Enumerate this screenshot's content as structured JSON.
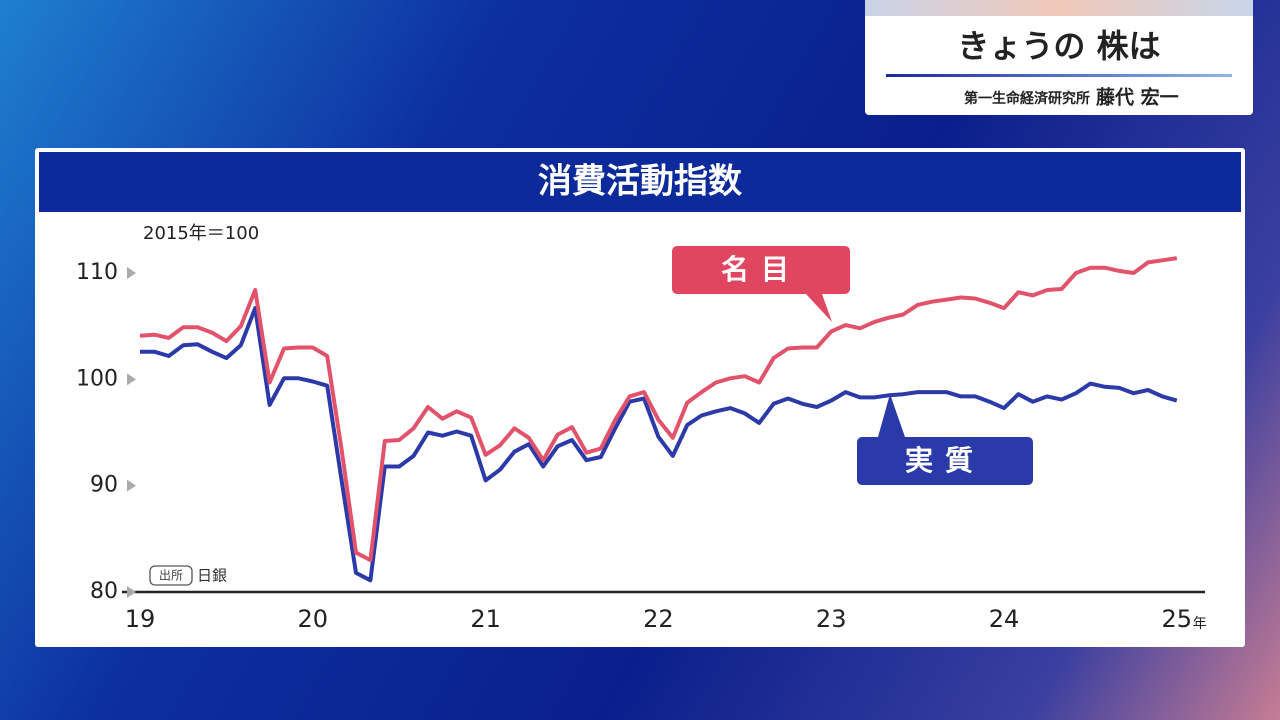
{
  "header": {
    "title": "きょうの 株は",
    "affiliation": "第一生命経済研究所",
    "name": "藤代 宏一"
  },
  "chart_data": {
    "type": "line",
    "title": "消費活動指数",
    "y_note": "2015年＝100",
    "source_tag": "出所",
    "source": "日銀",
    "x_unit": "年",
    "categories": [
      "19",
      null,
      null,
      null,
      null,
      null,
      null,
      null,
      null,
      null,
      null,
      null,
      "20",
      null,
      null,
      null,
      null,
      null,
      null,
      null,
      null,
      null,
      null,
      null,
      "21",
      null,
      null,
      null,
      null,
      null,
      null,
      null,
      null,
      null,
      null,
      null,
      "22",
      null,
      null,
      null,
      null,
      null,
      null,
      null,
      null,
      null,
      null,
      null,
      "23",
      null,
      null,
      null,
      null,
      null,
      null,
      null,
      null,
      null,
      null,
      null,
      "24",
      null,
      null,
      null,
      null,
      null,
      null,
      null,
      null,
      null,
      null,
      null,
      "25"
    ],
    "ylim": [
      80,
      114
    ],
    "yticks": [
      80,
      90,
      100,
      110
    ],
    "series": [
      {
        "name": "名目",
        "color": "#e2536b",
        "values": [
          104.1,
          104.2,
          103.9,
          104.9,
          104.9,
          104.4,
          103.6,
          105.0,
          108.4,
          99.7,
          102.9,
          103.0,
          103.0,
          102.2,
          93.4,
          83.7,
          83.0,
          94.2,
          94.3,
          95.4,
          97.4,
          96.3,
          97.0,
          96.4,
          92.9,
          93.8,
          95.4,
          94.5,
          92.4,
          94.8,
          95.5,
          93.1,
          93.5,
          96.2,
          98.4,
          98.8,
          96.2,
          94.5,
          97.8,
          98.8,
          99.7,
          100.1,
          100.3,
          99.7,
          102.0,
          102.9,
          103.0,
          103.0,
          104.5,
          105.1,
          104.8,
          105.4,
          105.8,
          106.1,
          107.0,
          107.3,
          107.5,
          107.7,
          107.6,
          107.2,
          106.7,
          108.2,
          107.9,
          108.4,
          108.5,
          110.0,
          110.5,
          110.5,
          110.2,
          110.0,
          111.0,
          111.2,
          111.4
        ]
      },
      {
        "name": "実質",
        "color": "#2b3aa8",
        "values": [
          102.6,
          102.6,
          102.2,
          103.2,
          103.3,
          102.6,
          102.0,
          103.2,
          106.7,
          97.6,
          100.1,
          100.1,
          99.8,
          99.4,
          90.5,
          81.8,
          81.1,
          91.8,
          91.8,
          92.8,
          95.0,
          94.7,
          95.1,
          94.7,
          90.5,
          91.5,
          93.2,
          93.9,
          91.8,
          93.7,
          94.3,
          92.4,
          92.7,
          95.4,
          97.9,
          98.2,
          94.6,
          92.8,
          95.7,
          96.6,
          97.0,
          97.3,
          96.8,
          95.9,
          97.7,
          98.2,
          97.7,
          97.4,
          98.0,
          98.8,
          98.3,
          98.3,
          98.5,
          98.6,
          98.8,
          98.8,
          98.8,
          98.4,
          98.4,
          97.9,
          97.3,
          98.6,
          97.9,
          98.4,
          98.1,
          98.7,
          99.6,
          99.3,
          99.2,
          98.7,
          99.0,
          98.4,
          98.0
        ]
      }
    ]
  }
}
